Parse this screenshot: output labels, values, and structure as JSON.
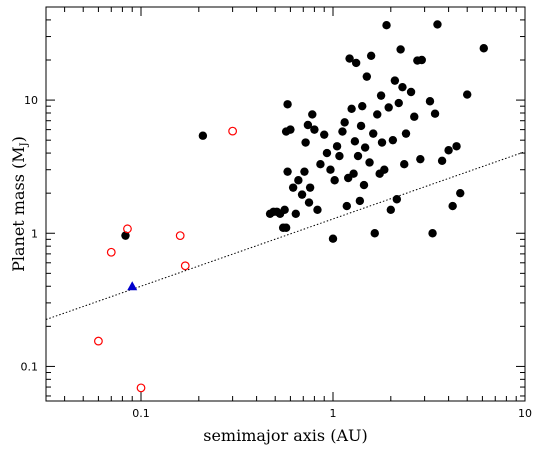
{
  "chart_data": {
    "type": "scatter",
    "xscale": "log",
    "yscale": "log",
    "xlim": [
      0.032,
      10
    ],
    "ylim": [
      0.055,
      50
    ],
    "xlabel": "semimajor axis (AU)",
    "ylabel": {
      "main": "Planet mass (M",
      "sub": "J",
      "close": ")"
    },
    "x_ticks": [
      {
        "value": 0.1,
        "label": "0.1"
      },
      {
        "value": 1,
        "label": "1"
      },
      {
        "value": 10,
        "label": "10"
      }
    ],
    "y_ticks": [
      {
        "value": 0.1,
        "label": "0.1"
      },
      {
        "value": 1,
        "label": "1"
      },
      {
        "value": 10,
        "label": "10"
      }
    ],
    "colors": {
      "filled": "#000000",
      "open": "#ff0000",
      "triangle": "#0000cc",
      "trend": "#000000"
    },
    "trend_line": {
      "style": "dotted",
      "points": [
        [
          0.032,
          0.225
        ],
        [
          10,
          4.1
        ]
      ]
    },
    "series": [
      {
        "marker": "filled-circle",
        "points": [
          [
            0.083,
            0.96
          ],
          [
            0.21,
            5.4
          ],
          [
            0.47,
            1.4
          ],
          [
            0.49,
            1.45
          ],
          [
            0.51,
            1.45
          ],
          [
            0.53,
            1.4
          ],
          [
            0.55,
            1.1
          ],
          [
            0.56,
            1.5
          ],
          [
            0.57,
            1.1
          ],
          [
            0.57,
            5.8
          ],
          [
            0.58,
            9.3
          ],
          [
            0.58,
            2.9
          ],
          [
            0.6,
            6.0
          ],
          [
            0.62,
            2.2
          ],
          [
            0.64,
            1.4
          ],
          [
            0.66,
            2.5
          ],
          [
            0.69,
            1.95
          ],
          [
            0.71,
            2.9
          ],
          [
            0.72,
            4.8
          ],
          [
            0.74,
            6.5
          ],
          [
            0.75,
            1.7
          ],
          [
            0.76,
            2.2
          ],
          [
            0.78,
            7.8
          ],
          [
            0.8,
            6.0
          ],
          [
            0.83,
            1.5
          ],
          [
            0.86,
            3.3
          ],
          [
            0.9,
            5.5
          ],
          [
            0.93,
            4.0
          ],
          [
            0.97,
            3.0
          ],
          [
            1.0,
            0.91
          ],
          [
            1.02,
            2.5
          ],
          [
            1.05,
            4.5
          ],
          [
            1.08,
            3.8
          ],
          [
            1.12,
            5.8
          ],
          [
            1.15,
            6.8
          ],
          [
            1.18,
            1.6
          ],
          [
            1.2,
            2.6
          ],
          [
            1.22,
            20.5
          ],
          [
            1.25,
            8.6
          ],
          [
            1.28,
            2.8
          ],
          [
            1.3,
            4.9
          ],
          [
            1.32,
            19.0
          ],
          [
            1.35,
            3.8
          ],
          [
            1.38,
            1.75
          ],
          [
            1.4,
            6.4
          ],
          [
            1.42,
            9.0
          ],
          [
            1.45,
            2.3
          ],
          [
            1.47,
            4.4
          ],
          [
            1.5,
            15.0
          ],
          [
            1.55,
            3.4
          ],
          [
            1.58,
            21.5
          ],
          [
            1.62,
            5.6
          ],
          [
            1.65,
            1.0
          ],
          [
            1.7,
            7.8
          ],
          [
            1.75,
            2.8
          ],
          [
            1.78,
            10.8
          ],
          [
            1.8,
            4.8
          ],
          [
            1.85,
            3.0
          ],
          [
            1.9,
            36.5
          ],
          [
            1.95,
            8.8
          ],
          [
            2.0,
            1.5
          ],
          [
            2.05,
            5.0
          ],
          [
            2.1,
            14.0
          ],
          [
            2.15,
            1.8
          ],
          [
            2.2,
            9.5
          ],
          [
            2.25,
            24.0
          ],
          [
            2.3,
            12.5
          ],
          [
            2.35,
            3.3
          ],
          [
            2.4,
            5.6
          ],
          [
            2.55,
            11.5
          ],
          [
            2.65,
            7.5
          ],
          [
            2.75,
            19.8
          ],
          [
            2.85,
            3.6
          ],
          [
            2.9,
            20.0
          ],
          [
            3.2,
            9.8
          ],
          [
            3.3,
            1.0
          ],
          [
            3.4,
            7.9
          ],
          [
            3.5,
            37.0
          ],
          [
            3.7,
            3.5
          ],
          [
            4.0,
            4.2
          ],
          [
            4.2,
            1.6
          ],
          [
            4.4,
            4.5
          ],
          [
            4.6,
            2.0
          ],
          [
            5.0,
            11.0
          ],
          [
            6.1,
            24.5
          ]
        ]
      },
      {
        "marker": "open-circle",
        "points": [
          [
            0.06,
            0.155
          ],
          [
            0.07,
            0.72
          ],
          [
            0.085,
            1.08
          ],
          [
            0.1,
            0.069
          ],
          [
            0.16,
            0.96
          ],
          [
            0.17,
            0.57
          ],
          [
            0.3,
            5.85
          ]
        ]
      },
      {
        "marker": "filled-triangle",
        "points": [
          [
            0.09,
            0.4
          ]
        ]
      }
    ]
  }
}
